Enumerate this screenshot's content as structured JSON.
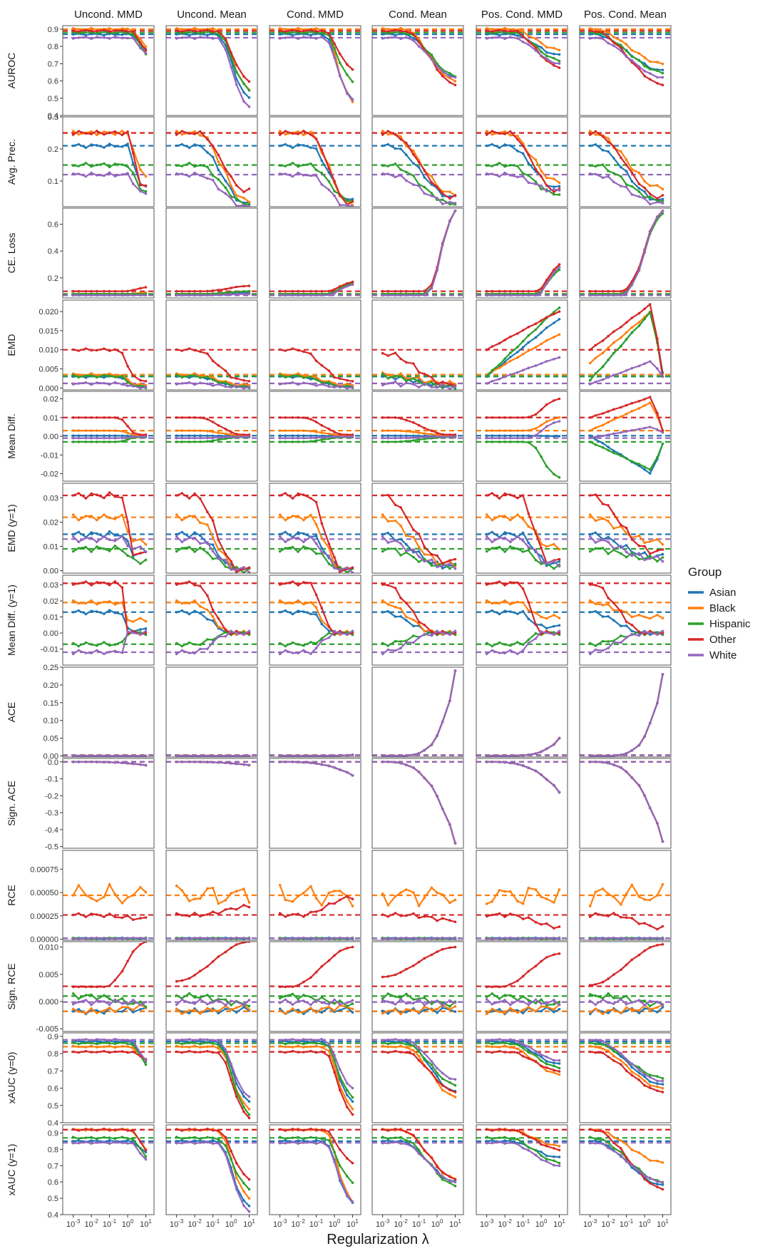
{
  "chart_data": {
    "type": "line",
    "title": "",
    "xlabel": "Regularization λ",
    "x": [
      0.001,
      0.002,
      0.005,
      0.01,
      0.02,
      0.05,
      0.1,
      0.2,
      0.5,
      1,
      2,
      5,
      10
    ],
    "xticks": [
      {
        "base": "10",
        "exp": "-3"
      },
      {
        "base": "10",
        "exp": "-2"
      },
      {
        "base": "10",
        "exp": "-1"
      },
      {
        "base": "10",
        "exp": "0"
      },
      {
        "base": "10",
        "exp": "1"
      }
    ],
    "xscale": "log",
    "columns": [
      "Uncond. MMD",
      "Uncond. Mean",
      "Cond. MMD",
      "Cond. Mean",
      "Pos. Cond. MMD",
      "Pos. Cond. Mean"
    ],
    "legend": {
      "title": "Group",
      "position": "right",
      "entries": [
        {
          "name": "Asian",
          "color": "#1f77b4"
        },
        {
          "name": "Black",
          "color": "#ff7f0e"
        },
        {
          "name": "Hispanic",
          "color": "#2ca02c"
        },
        {
          "name": "Other",
          "color": "#d62728"
        },
        {
          "name": "White",
          "color": "#9467bd"
        }
      ]
    },
    "rows": [
      {
        "label": "AUROC",
        "ylim": [
          0.4,
          0.92
        ],
        "yticks": [
          "0.9",
          "0.8",
          "0.7",
          "0.6",
          "0.5",
          "0.4"
        ],
        "baseline": [
          0.87,
          0.9,
          0.88,
          0.89,
          0.85
        ]
      },
      {
        "label": "Avg. Prec.",
        "ylim": [
          0.02,
          0.3
        ],
        "yticks": [
          "0.3",
          "0.2",
          "0.1"
        ],
        "baseline": [
          0.21,
          0.25,
          0.15,
          0.25,
          0.12
        ]
      },
      {
        "label": "CE. Loss",
        "ylim": [
          0.05,
          0.72
        ],
        "yticks": [
          "0.6",
          "0.4",
          "0.2"
        ],
        "baseline": [
          0.07,
          0.08,
          0.08,
          0.1,
          0.07
        ]
      },
      {
        "label": "EMD",
        "ylim": [
          -0.0005,
          0.023
        ],
        "yticks": [
          "0.020",
          "0.015",
          "0.010",
          "0.005",
          "0.000"
        ],
        "baseline": [
          0.003,
          0.0035,
          0.0031,
          0.01,
          0.0012
        ]
      },
      {
        "label": "Mean Diff.",
        "ylim": [
          -0.024,
          0.024
        ],
        "yticks": [
          "0.02",
          "0.01",
          "0.00",
          "-0.01",
          "-0.02"
        ],
        "baseline": [
          0.0003,
          0.003,
          -0.003,
          0.01,
          -0.001
        ]
      },
      {
        "label": "EMD (y=1)",
        "ylim": [
          -0.001,
          0.036
        ],
        "yticks": [
          "0.03",
          "0.02",
          "0.01",
          "0.00"
        ],
        "baseline": [
          0.015,
          0.022,
          0.009,
          0.031,
          0.013
        ]
      },
      {
        "label": "Mean Diff. (y=1)",
        "ylim": [
          -0.02,
          0.036
        ],
        "yticks": [
          "0.03",
          "0.02",
          "0.01",
          "0.00",
          "-0.01"
        ],
        "baseline": [
          0.013,
          0.019,
          -0.007,
          0.031,
          -0.012
        ]
      },
      {
        "label": "ACE",
        "ylim": [
          -0.003,
          0.25
        ],
        "yticks": [
          "0.25",
          "0.20",
          "0.15",
          "0.10",
          "0.05",
          "0.00"
        ],
        "baseline": [
          0.002,
          0.002,
          0.002,
          0.002,
          0.002
        ]
      },
      {
        "label": "Sign. ACE",
        "ylim": [
          -0.51,
          0.02
        ],
        "yticks": [
          "0.0",
          "-0.1",
          "-0.2",
          "-0.3",
          "-0.4",
          "-0.5"
        ],
        "baseline": [
          0,
          0,
          0,
          0,
          0
        ]
      },
      {
        "label": "RCE",
        "ylim": [
          -1e-05,
          0.00095
        ],
        "yticks": [
          "0.00075",
          "0.00050",
          "0.00025",
          "0.00000"
        ],
        "baseline": [
          1e-05,
          0.00047,
          1e-05,
          0.00026,
          1e-05
        ]
      },
      {
        "label": "Sign. RCE",
        "ylim": [
          -0.0055,
          0.011
        ],
        "yticks": [
          "0.010",
          "0.005",
          "0.000",
          "-0.005"
        ],
        "baseline": [
          -0.0018,
          -0.0018,
          0.001,
          0.0028,
          -0.0001
        ]
      },
      {
        "label": "xAUC (y=0)",
        "ylim": [
          0.4,
          0.92
        ],
        "yticks": [
          "0.9",
          "0.8",
          "0.7",
          "0.6",
          "0.5",
          "0.4"
        ],
        "baseline": [
          0.87,
          0.84,
          0.86,
          0.81,
          0.88
        ]
      },
      {
        "label": "xAUC (y=1)",
        "ylim": [
          0.4,
          0.95
        ],
        "yticks": [
          "0.9",
          "0.8",
          "0.7",
          "0.6",
          "0.5",
          "0.4"
        ],
        "baseline": [
          0.85,
          0.92,
          0.87,
          0.92,
          0.84
        ]
      }
    ]
  }
}
